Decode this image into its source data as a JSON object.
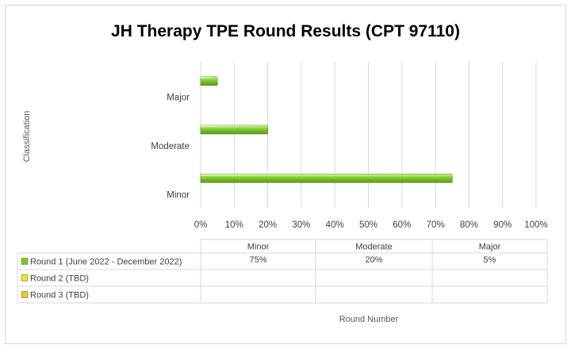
{
  "chart_data": {
    "type": "bar",
    "orientation": "horizontal",
    "title": "JH Therapy TPE Round Results (CPT 97110)",
    "xlabel": "Round Number",
    "ylabel": "Classification",
    "categories": [
      "Minor",
      "Moderate",
      "Major"
    ],
    "xlim": [
      0,
      100
    ],
    "x_ticks": [
      "0%",
      "10%",
      "20%",
      "30%",
      "40%",
      "50%",
      "60%",
      "70%",
      "80%",
      "90%",
      "100%"
    ],
    "grid": true,
    "series": [
      {
        "name": "Round 1 (June 2022 - December 2022)",
        "values": [
          75,
          20,
          5
        ],
        "display": [
          "75%",
          "20%",
          "5%"
        ],
        "color": "#7cc62a"
      },
      {
        "name": "Round 2 (TBD)",
        "values": [
          null,
          null,
          null
        ],
        "display": [
          "",
          "",
          ""
        ],
        "color": "#e5e632"
      },
      {
        "name": "Round 3 (TBD)",
        "values": [
          null,
          null,
          null
        ],
        "display": [
          "",
          "",
          ""
        ],
        "color": "#e8c73a"
      }
    ],
    "legend": "data-table-below"
  }
}
